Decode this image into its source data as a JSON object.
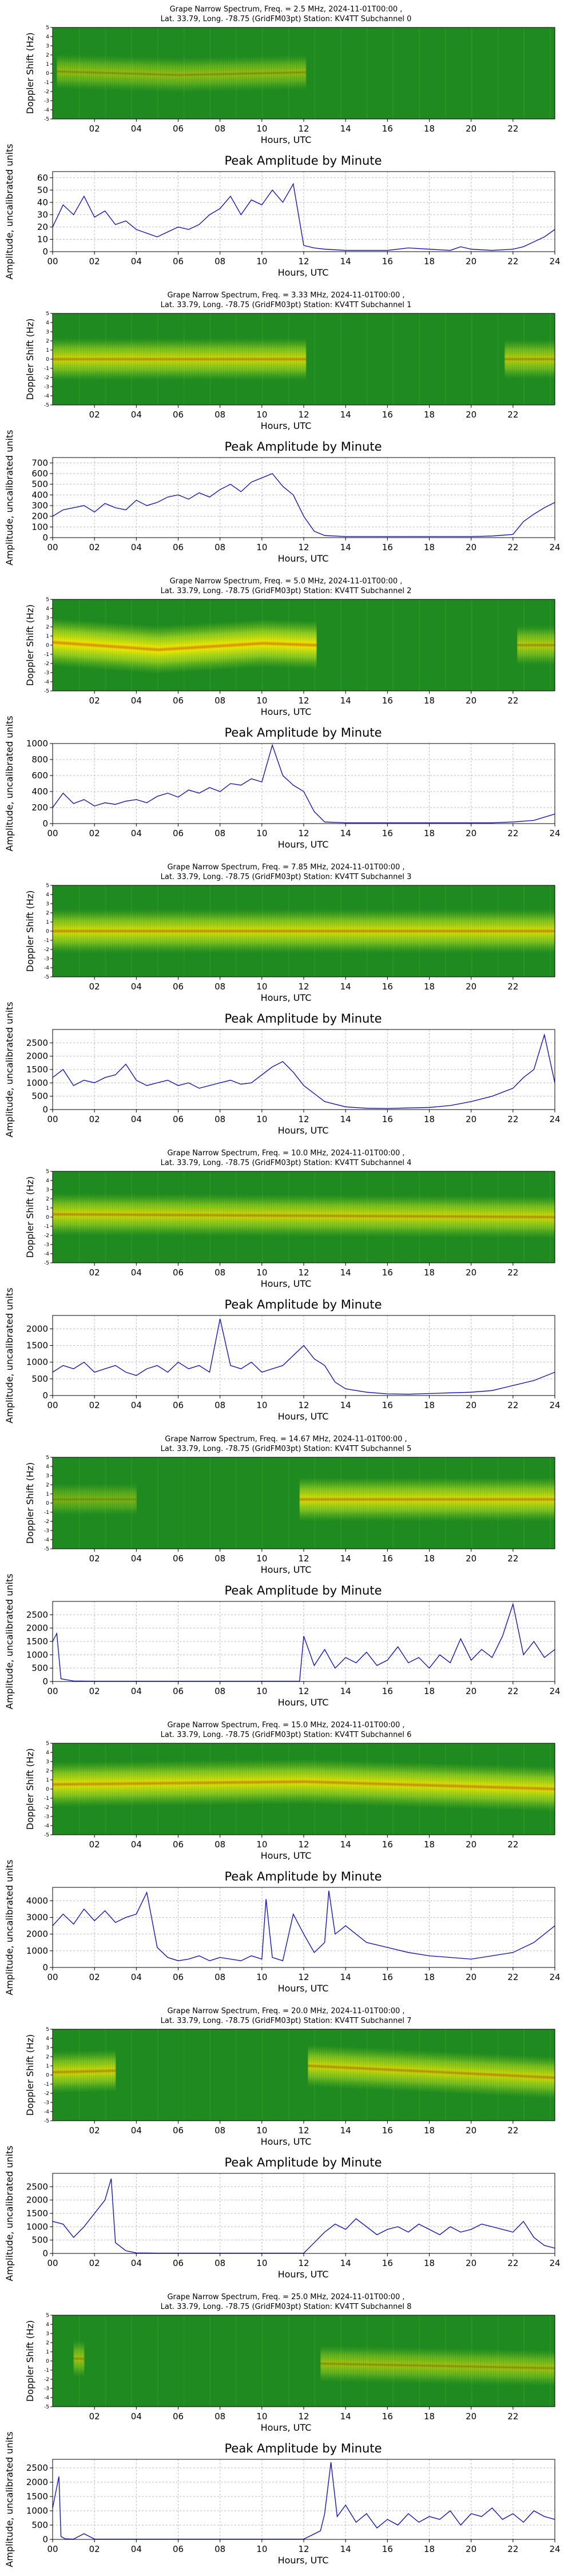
{
  "common": {
    "spectrogram_ylabel": "Doppler Shift (Hz)",
    "amplitude_title": "Peak Amplitude by Minute",
    "amplitude_ylabel": "Amplitude, uncalibrated units",
    "xlabel": "Hours, UTC",
    "spectrogram_xticks": [
      "02",
      "04",
      "06",
      "08",
      "10",
      "12",
      "14",
      "16",
      "18",
      "20",
      "22"
    ],
    "amplitude_xticks": [
      "00",
      "02",
      "04",
      "06",
      "08",
      "10",
      "12",
      "14",
      "16",
      "18",
      "20",
      "22",
      "24"
    ],
    "spectrogram_yticks": [
      "5",
      "4",
      "3",
      "2",
      "1",
      "0",
      "-1",
      "-2",
      "-3",
      "-4",
      "-5"
    ],
    "colors": {
      "spectrogram_bg": "#1f8a1f",
      "trace": "#0000ff",
      "grid": "#bbbbbb"
    }
  },
  "chart_data": [
    {
      "type": "heatmap",
      "title_line1": "Grape Narrow Spectrum, Freq. = 2.5 MHz, 2024-11-01T00:00 ,",
      "title_line2": "Lat.  33.79, Long. -78.75 (GridFM03pt) Station: KV4TT Subchannel 0",
      "xlim": [
        0,
        24
      ],
      "ylim": [
        -5,
        5
      ],
      "signal_segments": [
        [
          0.2,
          12.0,
          0.45
        ]
      ],
      "trace_centers": [
        [
          0,
          0.2
        ],
        [
          6,
          -0.2
        ],
        [
          12,
          0.1
        ]
      ]
    },
    {
      "type": "line",
      "title": "Peak Amplitude by Minute",
      "xlim": [
        0,
        24
      ],
      "ylim": [
        0,
        65
      ],
      "yticks": [
        "0",
        "10",
        "20",
        "30",
        "40",
        "50",
        "60"
      ],
      "x": [
        0,
        0.5,
        1,
        1.5,
        2,
        2.5,
        3,
        3.5,
        4,
        4.5,
        5,
        5.5,
        6,
        6.5,
        7,
        7.5,
        8,
        8.5,
        9,
        9.5,
        10,
        10.5,
        11,
        11.5,
        12,
        12.5,
        13,
        14,
        15,
        16,
        17,
        18,
        19,
        19.5,
        20,
        21,
        22,
        22.5,
        23,
        23.5,
        24
      ],
      "y": [
        20,
        38,
        30,
        45,
        28,
        33,
        22,
        25,
        18,
        15,
        12,
        16,
        20,
        18,
        22,
        30,
        35,
        45,
        30,
        42,
        38,
        50,
        40,
        55,
        5,
        3,
        2,
        1,
        1,
        1,
        3,
        2,
        1,
        4,
        2,
        1,
        2,
        4,
        8,
        12,
        18
      ]
    },
    {
      "type": "heatmap",
      "title_line1": "Grape Narrow Spectrum, Freq. = 3.33 MHz, 2024-11-01T00:00 ,",
      "title_line2": "Lat.  33.79, Long. -78.75 (GridFM03pt) Station: KV4TT Subchannel 1",
      "xlim": [
        0,
        24
      ],
      "ylim": [
        -5,
        5
      ],
      "signal_segments": [
        [
          0.0,
          12.0,
          0.7
        ],
        [
          21.6,
          24.0,
          0.6
        ]
      ],
      "trace_centers": [
        [
          0,
          0.0
        ],
        [
          12,
          0.0
        ],
        [
          24,
          0.0
        ]
      ]
    },
    {
      "type": "line",
      "title": "Peak Amplitude by Minute",
      "xlim": [
        0,
        24
      ],
      "ylim": [
        0,
        750
      ],
      "yticks": [
        "0",
        "100",
        "200",
        "300",
        "400",
        "500",
        "600",
        "700"
      ],
      "x": [
        0,
        0.5,
        1,
        1.5,
        2,
        2.5,
        3,
        3.5,
        4,
        4.5,
        5,
        5.5,
        6,
        6.5,
        7,
        7.5,
        8,
        8.5,
        9,
        9.5,
        10,
        10.5,
        11,
        11.5,
        12,
        12.5,
        13,
        14,
        15,
        16,
        17,
        18,
        19,
        20,
        21,
        22,
        22.5,
        23,
        23.5,
        24
      ],
      "y": [
        200,
        260,
        280,
        300,
        240,
        320,
        280,
        260,
        350,
        300,
        330,
        380,
        400,
        360,
        420,
        380,
        450,
        500,
        430,
        520,
        560,
        600,
        480,
        400,
        200,
        60,
        20,
        10,
        10,
        10,
        10,
        10,
        10,
        10,
        15,
        30,
        150,
        220,
        280,
        330
      ]
    },
    {
      "type": "heatmap",
      "title_line1": "Grape Narrow Spectrum, Freq. = 5.0 MHz, 2024-11-01T00:00 ,",
      "title_line2": "Lat.  33.79, Long. -78.75 (GridFM03pt) Station: KV4TT Subchannel 2",
      "xlim": [
        0,
        24
      ],
      "ylim": [
        -5,
        5
      ],
      "signal_segments": [
        [
          0.0,
          12.5,
          0.9
        ],
        [
          22.2,
          24.0,
          0.6
        ]
      ],
      "trace_centers": [
        [
          0,
          0.3
        ],
        [
          5,
          -0.5
        ],
        [
          10,
          0.2
        ],
        [
          12.5,
          0.0
        ]
      ]
    },
    {
      "type": "line",
      "title": "Peak Amplitude by Minute",
      "xlim": [
        0,
        24
      ],
      "ylim": [
        0,
        1000
      ],
      "yticks": [
        "0",
        "200",
        "400",
        "600",
        "800",
        "1000"
      ],
      "x": [
        0,
        0.5,
        1,
        1.5,
        2,
        2.5,
        3,
        3.5,
        4,
        4.5,
        5,
        5.5,
        6,
        6.5,
        7,
        7.5,
        8,
        8.5,
        9,
        9.5,
        10,
        10.5,
        11,
        11.5,
        12,
        12.5,
        13,
        14,
        15,
        16,
        17,
        18,
        19,
        20,
        21,
        22,
        23,
        23.5,
        24
      ],
      "y": [
        200,
        380,
        250,
        300,
        220,
        260,
        240,
        280,
        300,
        260,
        340,
        380,
        330,
        420,
        380,
        450,
        400,
        500,
        480,
        560,
        520,
        980,
        600,
        480,
        400,
        150,
        20,
        10,
        10,
        10,
        10,
        10,
        10,
        10,
        10,
        20,
        40,
        80,
        120
      ]
    },
    {
      "type": "heatmap",
      "title_line1": "Grape Narrow Spectrum, Freq. = 7.85 MHz, 2024-11-01T00:00 ,",
      "title_line2": "Lat.  33.79, Long. -78.75 (GridFM03pt) Station: KV4TT Subchannel 3",
      "xlim": [
        0,
        24
      ],
      "ylim": [
        -5,
        5
      ],
      "signal_segments": [
        [
          0.0,
          24.0,
          0.75
        ]
      ],
      "trace_centers": [
        [
          0,
          0.0
        ],
        [
          24,
          0.0
        ]
      ]
    },
    {
      "type": "line",
      "title": "Peak Amplitude by Minute",
      "xlim": [
        0,
        24
      ],
      "ylim": [
        0,
        3000
      ],
      "yticks": [
        "0",
        "500",
        "1000",
        "1500",
        "2000",
        "2500"
      ],
      "x": [
        0,
        0.5,
        1,
        1.5,
        2,
        2.5,
        3,
        3.5,
        4,
        4.5,
        5,
        5.5,
        6,
        6.5,
        7,
        7.5,
        8,
        8.5,
        9,
        9.5,
        10,
        10.5,
        11,
        11.5,
        12,
        12.5,
        13,
        14,
        15,
        16,
        17,
        18,
        19,
        20,
        21,
        22,
        22.5,
        23,
        23.5,
        24
      ],
      "y": [
        1200,
        1500,
        900,
        1100,
        1000,
        1200,
        1300,
        1700,
        1100,
        900,
        1000,
        1100,
        900,
        1000,
        800,
        900,
        1000,
        1100,
        950,
        1000,
        1300,
        1600,
        1800,
        1400,
        900,
        600,
        300,
        100,
        50,
        40,
        60,
        80,
        150,
        300,
        500,
        800,
        1200,
        1500,
        2800,
        1000
      ]
    },
    {
      "type": "heatmap",
      "title_line1": "Grape Narrow Spectrum, Freq. = 10.0 MHz, 2024-11-01T00:00 ,",
      "title_line2": "Lat.  33.79, Long. -78.75 (GridFM03pt) Station: KV4TT Subchannel 4",
      "xlim": [
        0,
        24
      ],
      "ylim": [
        -5,
        5
      ],
      "signal_segments": [
        [
          0.0,
          24.0,
          0.7
        ]
      ],
      "trace_centers": [
        [
          0,
          0.3
        ],
        [
          24,
          0.0
        ]
      ]
    },
    {
      "type": "line",
      "title": "Peak Amplitude by Minute",
      "xlim": [
        0,
        24
      ],
      "ylim": [
        0,
        2400
      ],
      "yticks": [
        "0",
        "500",
        "1000",
        "1500",
        "2000"
      ],
      "x": [
        0,
        0.5,
        1,
        1.5,
        2,
        2.5,
        3,
        3.5,
        4,
        4.5,
        5,
        5.5,
        6,
        6.5,
        7,
        7.5,
        8,
        8.5,
        9,
        9.5,
        10,
        10.5,
        11,
        11.5,
        12,
        12.5,
        13,
        13.5,
        14,
        15,
        16,
        17,
        18,
        19,
        20,
        21,
        22,
        23,
        24
      ],
      "y": [
        700,
        900,
        800,
        1000,
        700,
        800,
        900,
        700,
        600,
        800,
        900,
        700,
        1000,
        800,
        900,
        700,
        2300,
        900,
        800,
        1000,
        700,
        800,
        900,
        1200,
        1500,
        1100,
        900,
        400,
        200,
        100,
        50,
        40,
        60,
        80,
        100,
        150,
        300,
        450,
        700
      ]
    },
    {
      "type": "heatmap",
      "title_line1": "Grape Narrow Spectrum, Freq. = 14.67 MHz, 2024-11-01T00:00 ,",
      "title_line2": "Lat.  33.79, Long. -78.75 (GridFM03pt) Station: KV4TT Subchannel 5",
      "xlim": [
        0,
        24
      ],
      "ylim": [
        -5,
        5
      ],
      "signal_segments": [
        [
          0.0,
          4.0,
          0.35
        ],
        [
          11.8,
          24.0,
          0.75
        ]
      ],
      "trace_centers": [
        [
          0,
          0.4
        ],
        [
          24,
          0.4
        ]
      ]
    },
    {
      "type": "line",
      "title": "Peak Amplitude by Minute",
      "xlim": [
        0,
        24
      ],
      "ylim": [
        0,
        3000
      ],
      "yticks": [
        "0",
        "500",
        "1000",
        "1500",
        "2000",
        "2500"
      ],
      "x": [
        0,
        0.2,
        0.4,
        1,
        2,
        3,
        4,
        5,
        6,
        7,
        8,
        9,
        10,
        11,
        11.8,
        12,
        12.5,
        13,
        13.5,
        14,
        14.5,
        15,
        15.5,
        16,
        16.5,
        17,
        17.5,
        18,
        18.5,
        19,
        19.5,
        20,
        20.5,
        21,
        21.5,
        22,
        22.5,
        23,
        23.5,
        24
      ],
      "y": [
        1500,
        1800,
        100,
        20,
        10,
        10,
        10,
        10,
        10,
        10,
        10,
        10,
        10,
        10,
        10,
        1700,
        600,
        1200,
        500,
        900,
        700,
        1100,
        600,
        800,
        1300,
        700,
        900,
        500,
        1000,
        700,
        1600,
        800,
        1200,
        900,
        1700,
        2900,
        1000,
        1500,
        900,
        1200
      ]
    },
    {
      "type": "heatmap",
      "title_line1": "Grape Narrow Spectrum, Freq. = 15.0 MHz, 2024-11-01T00:00 ,",
      "title_line2": "Lat.  33.79, Long. -78.75 (GridFM03pt) Station: KV4TT Subchannel 6",
      "xlim": [
        0,
        24
      ],
      "ylim": [
        -5,
        5
      ],
      "signal_segments": [
        [
          0.0,
          24.0,
          0.8
        ]
      ],
      "trace_centers": [
        [
          0,
          0.5
        ],
        [
          12,
          0.8
        ],
        [
          24,
          0.0
        ]
      ]
    },
    {
      "type": "line",
      "title": "Peak Amplitude by Minute",
      "xlim": [
        0,
        24
      ],
      "ylim": [
        0,
        4800
      ],
      "yticks": [
        "0",
        "1000",
        "2000",
        "3000",
        "4000"
      ],
      "x": [
        0,
        0.5,
        1,
        1.5,
        2,
        2.5,
        3,
        3.5,
        4,
        4.5,
        5,
        5.5,
        6,
        6.5,
        7,
        7.5,
        8,
        8.5,
        9,
        9.5,
        10,
        10.2,
        10.5,
        11,
        11.5,
        12,
        12.5,
        13,
        13.2,
        13.5,
        14,
        15,
        16,
        17,
        18,
        19,
        20,
        21,
        22,
        23,
        24
      ],
      "y": [
        2500,
        3200,
        2600,
        3500,
        2800,
        3400,
        2700,
        3000,
        3200,
        4500,
        1200,
        600,
        400,
        500,
        700,
        400,
        600,
        500,
        400,
        700,
        500,
        4100,
        600,
        400,
        3200,
        2000,
        900,
        1500,
        4600,
        2000,
        2500,
        1500,
        1200,
        900,
        700,
        600,
        500,
        700,
        900,
        1500,
        2500
      ]
    },
    {
      "type": "heatmap",
      "title_line1": "Grape Narrow Spectrum, Freq. = 20.0 MHz, 2024-11-01T00:00 ,",
      "title_line2": "Lat.  33.79, Long. -78.75 (GridFM03pt) Station: KV4TT Subchannel 7",
      "xlim": [
        0,
        24
      ],
      "ylim": [
        -5,
        5
      ],
      "signal_segments": [
        [
          0.0,
          3.0,
          0.7
        ],
        [
          12.2,
          24.0,
          0.7
        ]
      ],
      "trace_centers": [
        [
          0,
          0.3
        ],
        [
          12.2,
          1.0
        ],
        [
          24,
          -0.3
        ]
      ]
    },
    {
      "type": "line",
      "title": "Peak Amplitude by Minute",
      "xlim": [
        0,
        24
      ],
      "ylim": [
        0,
        3000
      ],
      "yticks": [
        "0",
        "500",
        "1000",
        "1500",
        "2000",
        "2500"
      ],
      "x": [
        0,
        0.5,
        1,
        1.5,
        2,
        2.5,
        2.8,
        3,
        3.5,
        4,
        5,
        6,
        7,
        8,
        9,
        10,
        11,
        12,
        12.5,
        13,
        13.5,
        14,
        14.5,
        15,
        15.5,
        16,
        16.5,
        17,
        17.5,
        18,
        18.5,
        19,
        19.5,
        20,
        20.5,
        21,
        21.5,
        22,
        22.5,
        23,
        23.5,
        24
      ],
      "y": [
        1200,
        1100,
        600,
        1000,
        1500,
        2000,
        2800,
        400,
        100,
        20,
        10,
        10,
        10,
        10,
        10,
        10,
        10,
        10,
        400,
        800,
        1100,
        900,
        1300,
        1000,
        700,
        900,
        1000,
        800,
        1100,
        900,
        700,
        1000,
        800,
        900,
        1100,
        1000,
        900,
        800,
        1200,
        600,
        300,
        200
      ]
    },
    {
      "type": "heatmap",
      "title_line1": "Grape Narrow Spectrum, Freq. = 25.0 MHz, 2024-11-01T00:00 ,",
      "title_line2": "Lat.  33.79, Long. -78.75 (GridFM03pt) Station: KV4TT Subchannel 8",
      "xlim": [
        0,
        24
      ],
      "ylim": [
        -5,
        5
      ],
      "signal_segments": [
        [
          1.0,
          1.5,
          0.5
        ],
        [
          12.8,
          24.0,
          0.5
        ]
      ],
      "trace_centers": [
        [
          0,
          0.3
        ],
        [
          24,
          -0.8
        ]
      ]
    },
    {
      "type": "line",
      "title": "Peak Amplitude by Minute",
      "xlim": [
        0,
        24
      ],
      "ylim": [
        0,
        2800
      ],
      "yticks": [
        "0",
        "500",
        "1000",
        "1500",
        "2000",
        "2500"
      ],
      "x": [
        0,
        0.3,
        0.4,
        0.6,
        1,
        1.5,
        2,
        3,
        4,
        5,
        6,
        7,
        8,
        9,
        10,
        11,
        12,
        12.8,
        13,
        13.3,
        13.6,
        14,
        14.5,
        15,
        15.5,
        16,
        16.5,
        17,
        17.5,
        18,
        18.5,
        19,
        19.5,
        20,
        20.5,
        21,
        21.5,
        22,
        22.5,
        23,
        23.5,
        24
      ],
      "y": [
        1100,
        2200,
        100,
        20,
        10,
        200,
        10,
        10,
        10,
        10,
        10,
        10,
        10,
        10,
        10,
        10,
        10,
        300,
        900,
        2700,
        800,
        1200,
        600,
        900,
        400,
        700,
        500,
        900,
        600,
        800,
        700,
        1000,
        500,
        900,
        800,
        1100,
        700,
        900,
        600,
        1000,
        800,
        700
      ]
    }
  ]
}
